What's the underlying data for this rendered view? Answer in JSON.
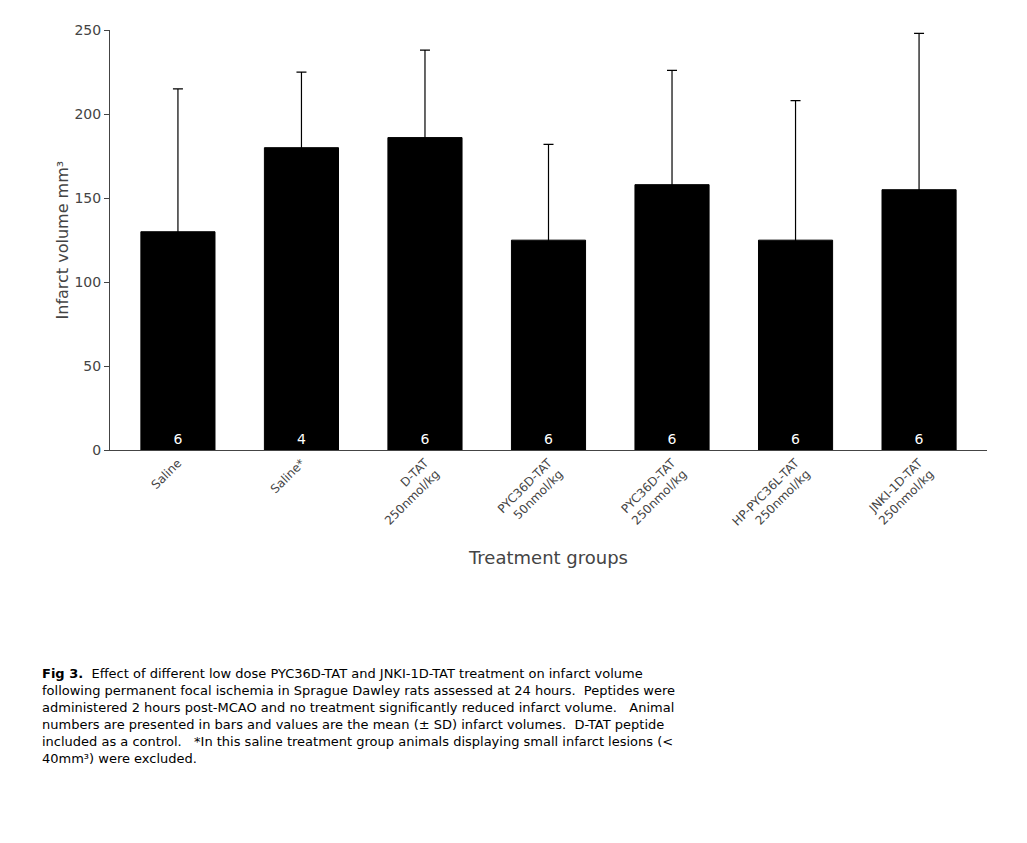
{
  "chart_data": {
    "type": "bar",
    "categories": [
      "Saline",
      "Saline*",
      "D-TAT\n250nmol/kg",
      "PYC36D-TAT\n50nmol/kg",
      "PYC36D-TAT\n250nmol/kg",
      "HP-PYC36L-TAT\n250nmol/kg",
      "JNKI-1D-TAT\n250nmol/kg"
    ],
    "values": [
      130,
      180,
      186,
      125,
      158,
      125,
      155
    ],
    "errors": [
      85,
      45,
      52,
      57,
      68,
      83,
      93
    ],
    "n_labels": [
      6,
      4,
      6,
      6,
      6,
      6,
      6
    ],
    "color": "#000000",
    "ylabel": "Infarct volume mm³",
    "xlabel": "Treatment groups",
    "ylim": [
      0,
      250
    ],
    "yticks": [
      0,
      50,
      100,
      150,
      200,
      250
    ],
    "grid": false,
    "caption_title": "Fig 3.",
    "caption_lines": [
      "Effect of different low dose PYC36D-TAT and JNKI-1D-TAT treatment on infarct volume",
      "following permanent focal ischemia in Sprague Dawley rats assessed at 24 hours.  Peptides were",
      "administered 2 hours post-MCAO and no treatment significantly reduced infarct volume.   Animal",
      "numbers are presented in bars and values are the mean (± SD) infarct volumes.  D-TAT peptide",
      "included as a control.   *In this saline treatment group animals displaying small infarct lesions (<",
      "40mm³) were excluded."
    ]
  }
}
